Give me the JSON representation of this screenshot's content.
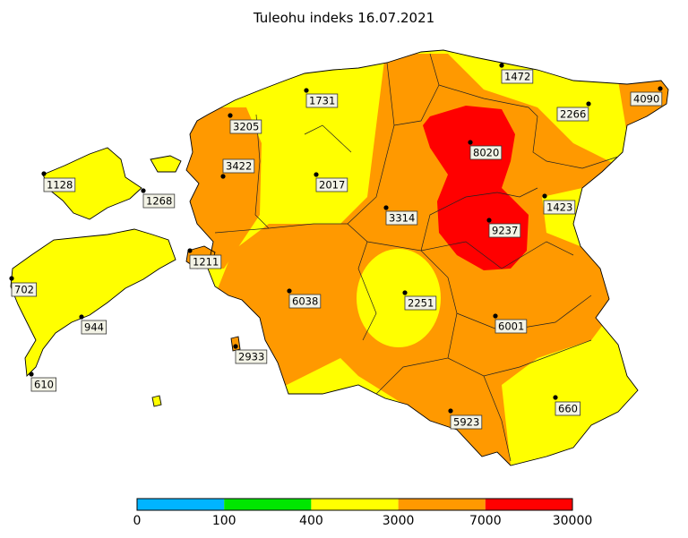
{
  "title": "Tuleohu indeks 16.07.2021",
  "legend": {
    "bins": [
      {
        "from": "0",
        "to": "100",
        "color": "#00b4ff"
      },
      {
        "from": "100",
        "to": "400",
        "color": "#00e600"
      },
      {
        "from": "400",
        "to": "3000",
        "color": "#ffff00"
      },
      {
        "from": "3000",
        "to": "7000",
        "color": "#ff9900"
      },
      {
        "from": "7000",
        "to": "30000",
        "color": "#ff0000"
      }
    ],
    "ticks": [
      "0",
      "100",
      "400",
      "3000",
      "7000",
      "30000"
    ]
  },
  "stations": [
    {
      "value": "1472"
    },
    {
      "value": "4090"
    },
    {
      "value": "1731"
    },
    {
      "value": "2266"
    },
    {
      "value": "3205"
    },
    {
      "value": "8020"
    },
    {
      "value": "3422"
    },
    {
      "value": "1128"
    },
    {
      "value": "2017"
    },
    {
      "value": "1268"
    },
    {
      "value": "1423"
    },
    {
      "value": "3314"
    },
    {
      "value": "9237"
    },
    {
      "value": "1211"
    },
    {
      "value": "702"
    },
    {
      "value": "6038"
    },
    {
      "value": "2251"
    },
    {
      "value": "944"
    },
    {
      "value": "6001"
    },
    {
      "value": "2933"
    },
    {
      "value": "610"
    },
    {
      "value": "660"
    },
    {
      "value": "5923"
    }
  ]
}
